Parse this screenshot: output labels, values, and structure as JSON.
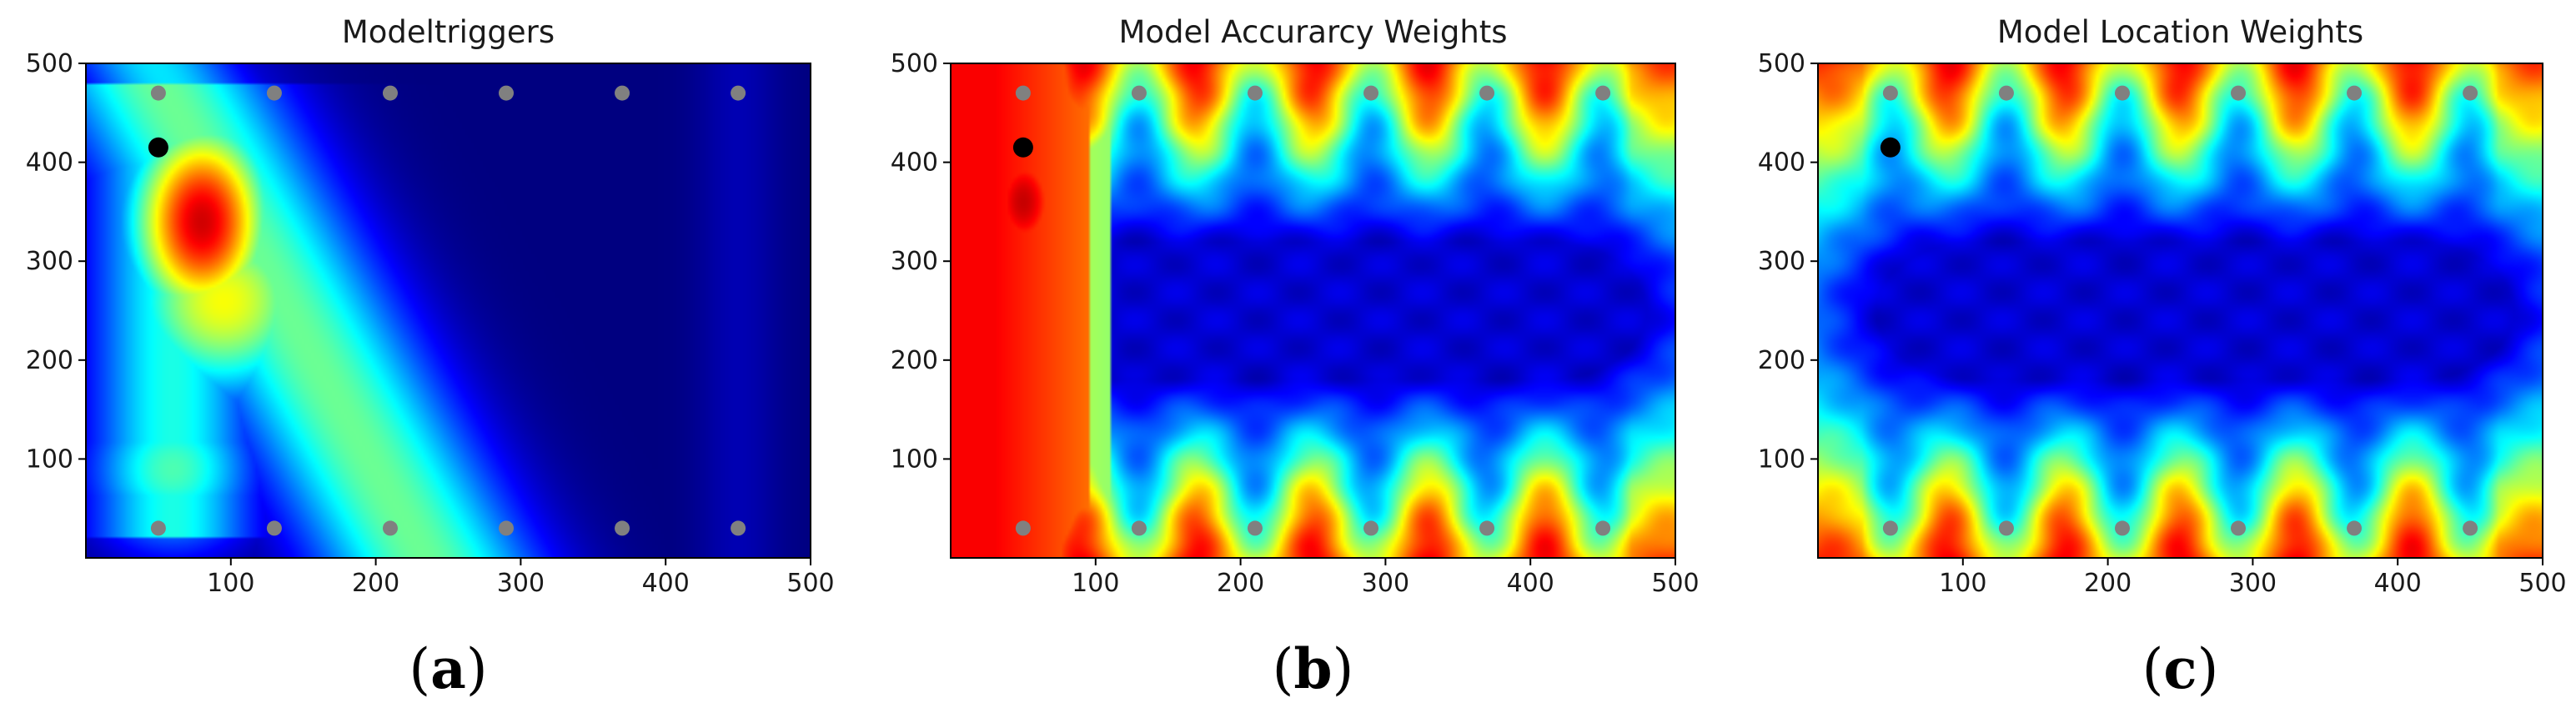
{
  "colors": {
    "jet_min": "#00007f",
    "jet_max": "#7f0000",
    "sensor_marker": "#808080",
    "target_marker": "#000000"
  },
  "chart_data": [
    {
      "type": "heatmap",
      "title": "Modeltriggers",
      "caption_letter": "a",
      "colormap": "jet",
      "xlim": [
        0,
        500
      ],
      "ylim": [
        0,
        500
      ],
      "xticks": [
        100,
        200,
        300,
        400,
        500
      ],
      "yticks": [
        100,
        200,
        300,
        400,
        500
      ],
      "grid": false,
      "pattern": "triggers",
      "sensor_points": [
        [
          50,
          470
        ],
        [
          130,
          470
        ],
        [
          210,
          470
        ],
        [
          290,
          470
        ],
        [
          370,
          470
        ],
        [
          450,
          470
        ],
        [
          50,
          30
        ],
        [
          130,
          30
        ],
        [
          210,
          30
        ],
        [
          290,
          30
        ],
        [
          370,
          30
        ],
        [
          450,
          30
        ]
      ],
      "target_point": [
        50,
        415
      ]
    },
    {
      "type": "heatmap",
      "title": "Model Accurarcy Weights",
      "caption_letter": "b",
      "colormap": "jet",
      "xlim": [
        0,
        500
      ],
      "ylim": [
        0,
        500
      ],
      "xticks": [
        100,
        200,
        300,
        400,
        500
      ],
      "yticks": [
        100,
        200,
        300,
        400,
        500
      ],
      "grid": false,
      "pattern": "accuracy",
      "sensor_points": [
        [
          50,
          470
        ],
        [
          130,
          470
        ],
        [
          210,
          470
        ],
        [
          290,
          470
        ],
        [
          370,
          470
        ],
        [
          450,
          470
        ],
        [
          50,
          30
        ],
        [
          130,
          30
        ],
        [
          210,
          30
        ],
        [
          290,
          30
        ],
        [
          370,
          30
        ],
        [
          450,
          30
        ]
      ],
      "target_point": [
        50,
        415
      ]
    },
    {
      "type": "heatmap",
      "title": "Model Location Weights",
      "caption_letter": "c",
      "colormap": "jet",
      "xlim": [
        0,
        500
      ],
      "ylim": [
        0,
        500
      ],
      "xticks": [
        100,
        200,
        300,
        400,
        500
      ],
      "yticks": [
        100,
        200,
        300,
        400,
        500
      ],
      "grid": false,
      "pattern": "location",
      "sensor_points": [
        [
          50,
          470
        ],
        [
          130,
          470
        ],
        [
          210,
          470
        ],
        [
          290,
          470
        ],
        [
          370,
          470
        ],
        [
          450,
          470
        ],
        [
          50,
          30
        ],
        [
          130,
          30
        ],
        [
          210,
          30
        ],
        [
          290,
          30
        ],
        [
          370,
          30
        ],
        [
          450,
          30
        ]
      ],
      "target_point": [
        50,
        415
      ]
    }
  ]
}
